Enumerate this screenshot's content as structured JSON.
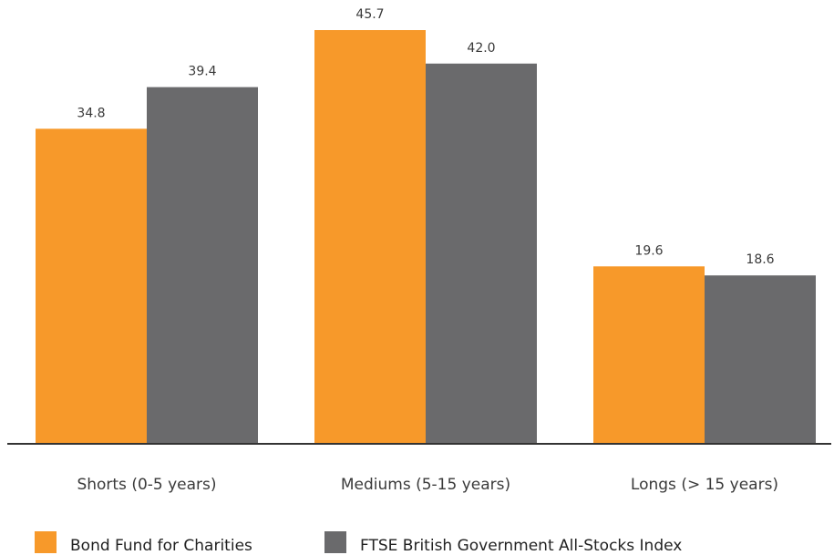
{
  "chart_data": {
    "type": "bar",
    "categories": [
      "Shorts (0-5 years)",
      "Mediums (5-15 years)",
      "Longs (> 15 years)"
    ],
    "series": [
      {
        "name": "Bond Fund for Charities",
        "values": [
          34.8,
          45.7,
          19.6
        ],
        "labels": [
          "34.8",
          "45.7",
          "19.6"
        ],
        "color": "#F7992A"
      },
      {
        "name": "FTSE British Government All-Stocks Index",
        "values": [
          39.4,
          42.0,
          18.6
        ],
        "labels": [
          "39.4",
          "42.0",
          "18.6"
        ],
        "color": "#6A6A6C"
      }
    ],
    "ylim": [
      0,
      45.7
    ],
    "grid": false,
    "legend_position": "bottom-left",
    "axis_color": "#333333"
  }
}
